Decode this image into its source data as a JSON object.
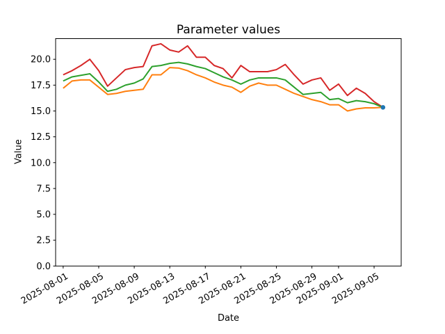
{
  "chart_data": {
    "type": "line",
    "title": "Parameter values",
    "xlabel": "Date",
    "ylabel": "Value",
    "x": [
      "2025-08-01",
      "2025-08-02",
      "2025-08-03",
      "2025-08-04",
      "2025-08-05",
      "2025-08-06",
      "2025-08-07",
      "2025-08-08",
      "2025-08-09",
      "2025-08-10",
      "2025-08-11",
      "2025-08-12",
      "2025-08-13",
      "2025-08-14",
      "2025-08-15",
      "2025-08-16",
      "2025-08-17",
      "2025-08-18",
      "2025-08-19",
      "2025-08-20",
      "2025-08-21",
      "2025-08-22",
      "2025-08-23",
      "2025-08-24",
      "2025-08-25",
      "2025-08-26",
      "2025-08-27",
      "2025-08-28",
      "2025-08-29",
      "2025-08-30",
      "2025-08-31",
      "2025-09-01",
      "2025-09-02",
      "2025-09-03",
      "2025-09-04",
      "2025-09-05",
      "2025-09-06"
    ],
    "series": [
      {
        "name": "red-line",
        "color": "#d62728",
        "values": [
          18.5,
          18.9,
          19.4,
          20.0,
          18.9,
          17.4,
          18.2,
          19.0,
          19.2,
          19.3,
          21.3,
          21.5,
          20.9,
          20.7,
          21.3,
          20.2,
          20.2,
          19.4,
          19.1,
          18.2,
          19.4,
          18.8,
          18.8,
          18.8,
          19.0,
          19.5,
          18.5,
          17.6,
          18.0,
          18.2,
          17.0,
          17.6,
          16.5,
          17.2,
          16.7,
          15.9,
          15.35
        ]
      },
      {
        "name": "green-line",
        "color": "#2ca02c",
        "values": [
          17.9,
          18.3,
          18.45,
          18.6,
          17.8,
          16.9,
          17.1,
          17.5,
          17.7,
          18.1,
          19.3,
          19.4,
          19.6,
          19.7,
          19.55,
          19.3,
          19.1,
          18.7,
          18.3,
          18.0,
          17.6,
          18.0,
          18.2,
          18.2,
          18.2,
          18.0,
          17.3,
          16.6,
          16.7,
          16.8,
          16.1,
          16.2,
          15.8,
          16.0,
          15.9,
          15.7,
          15.35
        ]
      },
      {
        "name": "orange-line",
        "color": "#ff7f0e",
        "values": [
          17.2,
          17.9,
          18.0,
          18.0,
          17.3,
          16.6,
          16.7,
          16.9,
          17.0,
          17.1,
          18.5,
          18.5,
          19.2,
          19.15,
          18.9,
          18.5,
          18.2,
          17.8,
          17.5,
          17.3,
          16.8,
          17.4,
          17.7,
          17.5,
          17.5,
          17.1,
          16.7,
          16.4,
          16.1,
          15.9,
          15.6,
          15.6,
          15.0,
          15.2,
          15.3,
          15.3,
          15.35
        ]
      }
    ],
    "end_marker": {
      "date": "2025-09-06",
      "value": 15.35,
      "color": "#1f77b4"
    },
    "ylim": [
      0,
      22
    ],
    "yticks": [
      0.0,
      2.5,
      5.0,
      7.5,
      10.0,
      12.5,
      15.0,
      17.5,
      20.0
    ],
    "xticks": [
      "2025-08-01",
      "2025-08-05",
      "2025-08-09",
      "2025-08-13",
      "2025-08-17",
      "2025-08-21",
      "2025-08-25",
      "2025-08-29",
      "2025-09-01",
      "2025-09-05"
    ],
    "xtick_rotation_deg": 30,
    "grid": false,
    "legend": null
  }
}
